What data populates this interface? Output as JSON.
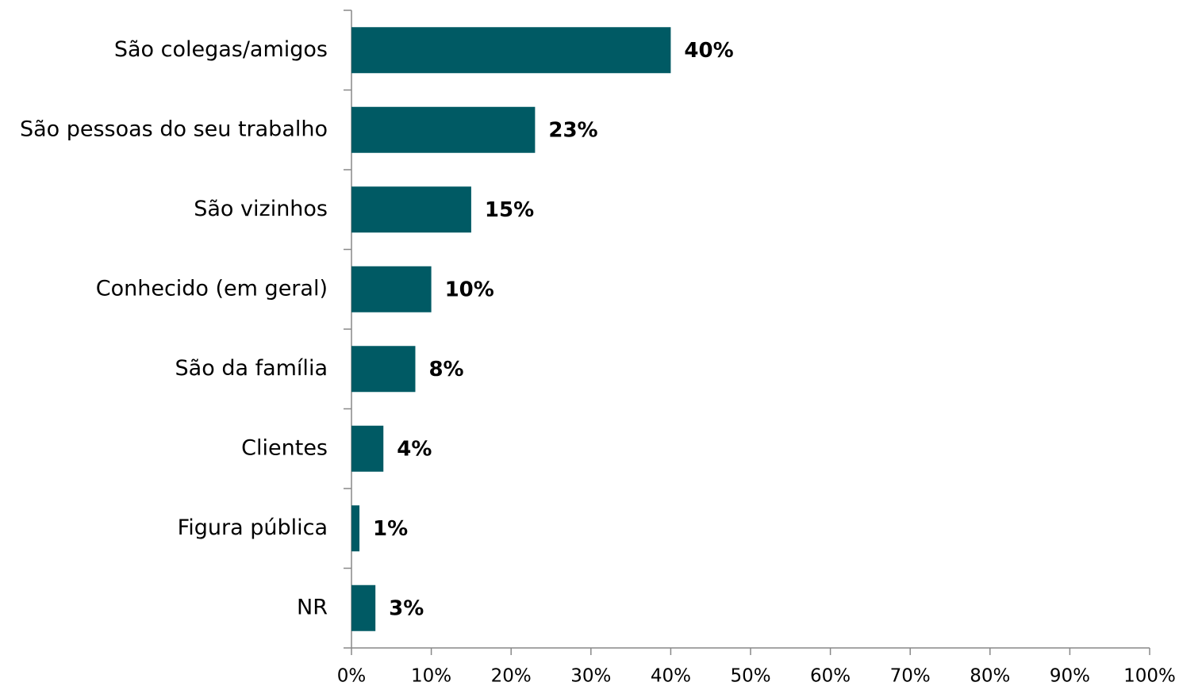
{
  "chart_data": {
    "type": "bar",
    "orientation": "horizontal",
    "categories": [
      "São colegas/amigos",
      "São pessoas do seu trabalho",
      "São vizinhos",
      "Conhecido (em geral)",
      "São da família",
      "Clientes",
      "Figura pública",
      "NR"
    ],
    "values": [
      40,
      23,
      15,
      10,
      8,
      4,
      1,
      3
    ],
    "value_labels": [
      "40%",
      "23%",
      "15%",
      "10%",
      "8%",
      "4%",
      "1%",
      "3%"
    ],
    "color": "#005a64",
    "xlim": [
      0,
      100
    ],
    "xticks": [
      {
        "value": 0,
        "label": "0%"
      },
      {
        "value": 10,
        "label": "10%"
      },
      {
        "value": 20,
        "label": "20%"
      },
      {
        "value": 30,
        "label": "30%"
      },
      {
        "value": 40,
        "label": "40%"
      },
      {
        "value": 50,
        "label": "50%"
      },
      {
        "value": 60,
        "label": "60%"
      },
      {
        "value": 70,
        "label": "70%"
      },
      {
        "value": 80,
        "label": "80%"
      },
      {
        "value": 90,
        "label": "90%"
      },
      {
        "value": 100,
        "label": "100%"
      }
    ],
    "grid": false
  }
}
